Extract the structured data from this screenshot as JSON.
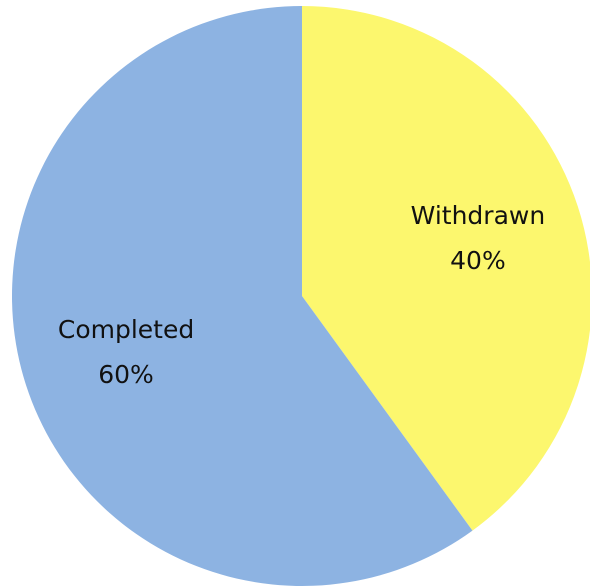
{
  "chart_data": {
    "type": "pie",
    "categories": [
      "Withdrawn",
      "Completed"
    ],
    "values": [
      40,
      60
    ],
    "value_labels": [
      "40%",
      "60%"
    ],
    "colors": [
      "#fcf76e",
      "#8db3e2"
    ]
  }
}
